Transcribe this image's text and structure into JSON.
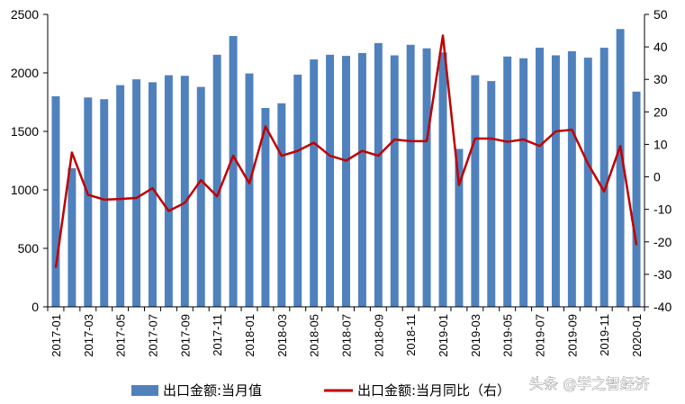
{
  "chart_data": {
    "type": "bar",
    "categories": [
      "2017-01",
      "2017-02",
      "2017-03",
      "2017-04",
      "2017-05",
      "2017-06",
      "2017-07",
      "2017-08",
      "2017-09",
      "2017-10",
      "2017-11",
      "2017-12",
      "2018-01",
      "2018-02",
      "2018-03",
      "2018-04",
      "2018-05",
      "2018-06",
      "2018-07",
      "2018-08",
      "2018-09",
      "2018-10",
      "2018-11",
      "2018-12",
      "2019-01",
      "2019-02",
      "2019-03",
      "2019-04",
      "2019-05",
      "2019-06",
      "2019-07",
      "2019-08",
      "2019-09",
      "2019-10",
      "2019-11",
      "2019-12",
      "2020-01"
    ],
    "x_tick_labels": [
      "2017-01",
      "2017-03",
      "2017-05",
      "2017-07",
      "2017-09",
      "2017-11",
      "2018-01",
      "2018-03",
      "2018-05",
      "2018-07",
      "2018-09",
      "2018-11",
      "2019-01",
      "2019-03",
      "2019-05",
      "2019-07",
      "2019-09",
      "2019-11",
      "2020-01"
    ],
    "series": [
      {
        "name": "出口金额:当月值",
        "type": "bar",
        "axis": "left",
        "color": "#4f81bd",
        "values": [
          1800,
          1185,
          1790,
          1775,
          1895,
          1945,
          1920,
          1980,
          1975,
          1880,
          2155,
          2315,
          1995,
          1700,
          1740,
          1985,
          2115,
          2155,
          2145,
          2170,
          2255,
          2150,
          2240,
          2210,
          2175,
          1350,
          1980,
          1930,
          2140,
          2125,
          2215,
          2150,
          2185,
          2130,
          2215,
          2375,
          1840
        ]
      },
      {
        "name": "出口金额:当月同比（右）",
        "type": "line",
        "axis": "right",
        "color": "#c00000",
        "values": [
          -28,
          7.5,
          -5.5,
          -7,
          -6.8,
          -6.5,
          -3.5,
          -10.5,
          -8,
          -1,
          -6,
          6.5,
          -2,
          15.5,
          6.5,
          8,
          10.5,
          6.5,
          5,
          8,
          6.5,
          11.5,
          11,
          11,
          43.5,
          -2.5,
          11.8,
          11.8,
          10.8,
          11.5,
          9.5,
          14,
          14.5,
          4,
          -4.5,
          9.5,
          -21
        ]
      }
    ],
    "y_left": {
      "min": 0,
      "max": 2500,
      "ticks": [
        0,
        500,
        1000,
        1500,
        2000,
        2500
      ]
    },
    "y_right": {
      "min": -40,
      "max": 50,
      "ticks": [
        -40,
        -30,
        -20,
        -10,
        0,
        10,
        20,
        30,
        40,
        50
      ]
    },
    "legend_position": "bottom",
    "grid": false
  },
  "legend": {
    "bar_label": "出口金额:当月值",
    "line_label": "出口金额:当月同比（右）"
  },
  "watermark": {
    "text": "头条 @学之智经济"
  },
  "colors": {
    "bar": "#4f81bd",
    "line": "#c00000",
    "axis": "#000000"
  }
}
